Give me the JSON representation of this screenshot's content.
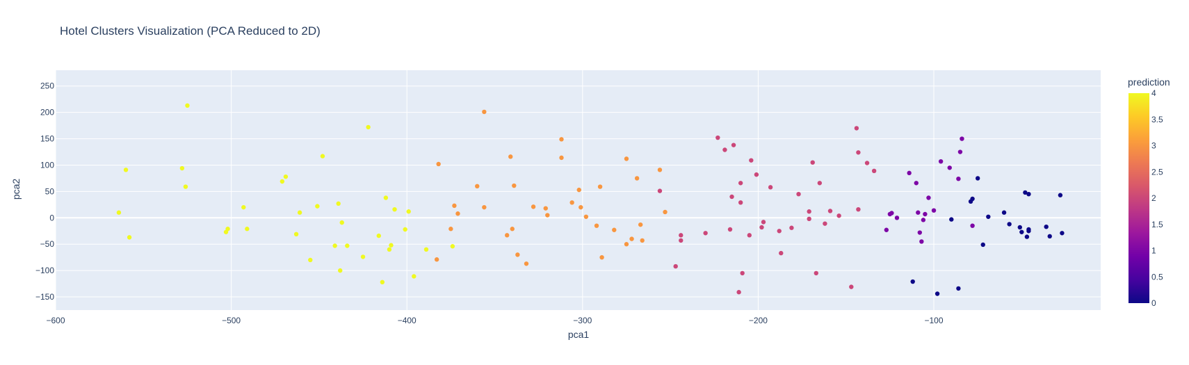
{
  "chart_data": {
    "type": "scatter",
    "title": "Hotel Clusters Visualization (PCA Reduced to 2D)",
    "xlabel": "pca1",
    "ylabel": "pca2",
    "xlim": [
      -600,
      -5
    ],
    "ylim": [
      -175,
      280
    ],
    "xticks": [
      -600,
      -500,
      -400,
      -300,
      -200,
      -100
    ],
    "xtick_labels": [
      "−600",
      "−500",
      "−400",
      "−300",
      "−200",
      "−100"
    ],
    "yticks": [
      -150,
      -100,
      -50,
      0,
      50,
      100,
      150,
      200,
      250
    ],
    "ytick_labels": [
      "−150",
      "−100",
      "−50",
      "0",
      "50",
      "100",
      "150",
      "200",
      "250"
    ],
    "grid": true,
    "colorbar": {
      "title": "prediction",
      "min": 0,
      "max": 4,
      "ticks": [
        0,
        0.5,
        1,
        1.5,
        2,
        2.5,
        3,
        3.5,
        4
      ],
      "tick_labels": [
        "0",
        "0.5",
        "1",
        "1.5",
        "2",
        "2.5",
        "3",
        "3.5",
        "4"
      ],
      "colorscale": [
        "#0d0887",
        "#46039f",
        "#7201a8",
        "#9c179e",
        "#bd3786",
        "#d8576b",
        "#ed7953",
        "#fb9f3a",
        "#fdca26",
        "#f0f921"
      ]
    },
    "colors": {
      "plot_bg": "#e5ecf6",
      "grid": "#ffffff",
      "text": "#2a3f5f"
    },
    "points": [
      {
        "x": -564,
        "y": 10,
        "c": 4
      },
      {
        "x": -560,
        "y": 91,
        "c": 4
      },
      {
        "x": -558,
        "y": -37,
        "c": 4
      },
      {
        "x": -528,
        "y": 94,
        "c": 4
      },
      {
        "x": -526,
        "y": 59,
        "c": 4
      },
      {
        "x": -525,
        "y": 213,
        "c": 4
      },
      {
        "x": -503,
        "y": -27,
        "c": 4
      },
      {
        "x": -502,
        "y": -21,
        "c": 4
      },
      {
        "x": -493,
        "y": 20,
        "c": 4
      },
      {
        "x": -491,
        "y": -21,
        "c": 4
      },
      {
        "x": -471,
        "y": 69,
        "c": 4
      },
      {
        "x": -469,
        "y": 78,
        "c": 4
      },
      {
        "x": -463,
        "y": -31,
        "c": 4
      },
      {
        "x": -461,
        "y": 10,
        "c": 4
      },
      {
        "x": -455,
        "y": -80,
        "c": 4
      },
      {
        "x": -451,
        "y": 22,
        "c": 4
      },
      {
        "x": -448,
        "y": 117,
        "c": 4
      },
      {
        "x": -441,
        "y": -53,
        "c": 4
      },
      {
        "x": -439,
        "y": 27,
        "c": 4
      },
      {
        "x": -438,
        "y": -100,
        "c": 4
      },
      {
        "x": -437,
        "y": -9,
        "c": 4
      },
      {
        "x": -434,
        "y": -53,
        "c": 4
      },
      {
        "x": -425,
        "y": -74,
        "c": 4
      },
      {
        "x": -422,
        "y": 172,
        "c": 4
      },
      {
        "x": -416,
        "y": -34,
        "c": 4
      },
      {
        "x": -414,
        "y": -122,
        "c": 4
      },
      {
        "x": -412,
        "y": 38,
        "c": 4
      },
      {
        "x": -410,
        "y": -60,
        "c": 4
      },
      {
        "x": -409,
        "y": -52,
        "c": 4
      },
      {
        "x": -407,
        "y": 16,
        "c": 4
      },
      {
        "x": -401,
        "y": -22,
        "c": 4
      },
      {
        "x": -399,
        "y": 12,
        "c": 4
      },
      {
        "x": -396,
        "y": -111,
        "c": 4
      },
      {
        "x": -389,
        "y": -60,
        "c": 4
      },
      {
        "x": -374,
        "y": -54,
        "c": 4
      },
      {
        "x": -383,
        "y": -79,
        "c": 3
      },
      {
        "x": -382,
        "y": 102,
        "c": 3
      },
      {
        "x": -375,
        "y": -21,
        "c": 3
      },
      {
        "x": -373,
        "y": 23,
        "c": 3
      },
      {
        "x": -371,
        "y": 8,
        "c": 3
      },
      {
        "x": -360,
        "y": 60,
        "c": 3
      },
      {
        "x": -356,
        "y": 201,
        "c": 3
      },
      {
        "x": -356,
        "y": 20,
        "c": 3
      },
      {
        "x": -343,
        "y": -33,
        "c": 3
      },
      {
        "x": -341,
        "y": 116,
        "c": 3
      },
      {
        "x": -340,
        "y": -21,
        "c": 3
      },
      {
        "x": -339,
        "y": 61,
        "c": 3
      },
      {
        "x": -337,
        "y": -70,
        "c": 3
      },
      {
        "x": -332,
        "y": -87,
        "c": 3
      },
      {
        "x": -328,
        "y": 21,
        "c": 3
      },
      {
        "x": -321,
        "y": 18,
        "c": 3
      },
      {
        "x": -320,
        "y": 5,
        "c": 3
      },
      {
        "x": -312,
        "y": 149,
        "c": 3
      },
      {
        "x": -312,
        "y": 114,
        "c": 3
      },
      {
        "x": -306,
        "y": 29,
        "c": 3
      },
      {
        "x": -302,
        "y": 53,
        "c": 3
      },
      {
        "x": -301,
        "y": 20,
        "c": 3
      },
      {
        "x": -298,
        "y": 2,
        "c": 3
      },
      {
        "x": -292,
        "y": -15,
        "c": 3
      },
      {
        "x": -290,
        "y": 59,
        "c": 3
      },
      {
        "x": -289,
        "y": -75,
        "c": 3
      },
      {
        "x": -282,
        "y": -23,
        "c": 3
      },
      {
        "x": -275,
        "y": 112,
        "c": 3
      },
      {
        "x": -275,
        "y": -50,
        "c": 3
      },
      {
        "x": -272,
        "y": -40,
        "c": 3
      },
      {
        "x": -269,
        "y": 75,
        "c": 3
      },
      {
        "x": -267,
        "y": -13,
        "c": 3
      },
      {
        "x": -266,
        "y": -43,
        "c": 3
      },
      {
        "x": -256,
        "y": 91,
        "c": 3
      },
      {
        "x": -253,
        "y": 11,
        "c": 3
      },
      {
        "x": -256,
        "y": 51,
        "c": 2
      },
      {
        "x": -247,
        "y": -92,
        "c": 2
      },
      {
        "x": -244,
        "y": -33,
        "c": 2
      },
      {
        "x": -244,
        "y": -43,
        "c": 2
      },
      {
        "x": -230,
        "y": -29,
        "c": 2
      },
      {
        "x": -223,
        "y": 152,
        "c": 2
      },
      {
        "x": -219,
        "y": 129,
        "c": 2
      },
      {
        "x": -216,
        "y": -22,
        "c": 2
      },
      {
        "x": -215,
        "y": 40,
        "c": 2
      },
      {
        "x": -214,
        "y": 138,
        "c": 2
      },
      {
        "x": -211,
        "y": -141,
        "c": 2
      },
      {
        "x": -210,
        "y": 66,
        "c": 2
      },
      {
        "x": -210,
        "y": 29,
        "c": 2
      },
      {
        "x": -209,
        "y": -105,
        "c": 2
      },
      {
        "x": -205,
        "y": -33,
        "c": 2
      },
      {
        "x": -204,
        "y": 109,
        "c": 2
      },
      {
        "x": -201,
        "y": 82,
        "c": 2
      },
      {
        "x": -198,
        "y": -18,
        "c": 2
      },
      {
        "x": -197,
        "y": -8,
        "c": 2
      },
      {
        "x": -193,
        "y": 58,
        "c": 2
      },
      {
        "x": -188,
        "y": -25,
        "c": 2
      },
      {
        "x": -187,
        "y": -67,
        "c": 2
      },
      {
        "x": -181,
        "y": -19,
        "c": 2
      },
      {
        "x": -177,
        "y": 45,
        "c": 2
      },
      {
        "x": -171,
        "y": 12,
        "c": 2
      },
      {
        "x": -171,
        "y": -2,
        "c": 2
      },
      {
        "x": -169,
        "y": 105,
        "c": 2
      },
      {
        "x": -167,
        "y": -105,
        "c": 2
      },
      {
        "x": -165,
        "y": 66,
        "c": 2
      },
      {
        "x": -162,
        "y": -11,
        "c": 2
      },
      {
        "x": -159,
        "y": 13,
        "c": 2
      },
      {
        "x": -154,
        "y": 4,
        "c": 2
      },
      {
        "x": -147,
        "y": -131,
        "c": 2
      },
      {
        "x": -144,
        "y": 170,
        "c": 2
      },
      {
        "x": -143,
        "y": 124,
        "c": 2
      },
      {
        "x": -143,
        "y": 16,
        "c": 2
      },
      {
        "x": -138,
        "y": 104,
        "c": 2
      },
      {
        "x": -134,
        "y": 89,
        "c": 2
      },
      {
        "x": -127,
        "y": -23,
        "c": 1
      },
      {
        "x": -125,
        "y": 7,
        "c": 1
      },
      {
        "x": -124,
        "y": 9,
        "c": 1
      },
      {
        "x": -121,
        "y": 0,
        "c": 1
      },
      {
        "x": -114,
        "y": 85,
        "c": 1
      },
      {
        "x": -110,
        "y": 66,
        "c": 1
      },
      {
        "x": -109,
        "y": 10,
        "c": 1
      },
      {
        "x": -108,
        "y": -28,
        "c": 1
      },
      {
        "x": -107,
        "y": -45,
        "c": 1
      },
      {
        "x": -106,
        "y": -4,
        "c": 1
      },
      {
        "x": -105,
        "y": 7,
        "c": 1
      },
      {
        "x": -103,
        "y": 38,
        "c": 1
      },
      {
        "x": -100,
        "y": 14,
        "c": 1
      },
      {
        "x": -96,
        "y": 107,
        "c": 1
      },
      {
        "x": -91,
        "y": 95,
        "c": 1
      },
      {
        "x": -86,
        "y": 74,
        "c": 1
      },
      {
        "x": -85,
        "y": 125,
        "c": 1
      },
      {
        "x": -84,
        "y": 150,
        "c": 1
      },
      {
        "x": -78,
        "y": -15,
        "c": 1
      },
      {
        "x": -112,
        "y": -121,
        "c": 0
      },
      {
        "x": -98,
        "y": -144,
        "c": 0
      },
      {
        "x": -90,
        "y": -3,
        "c": 0
      },
      {
        "x": -86,
        "y": -134,
        "c": 0
      },
      {
        "x": -79,
        "y": 31,
        "c": 0
      },
      {
        "x": -78,
        "y": 36,
        "c": 0
      },
      {
        "x": -75,
        "y": 75,
        "c": 0
      },
      {
        "x": -72,
        "y": -51,
        "c": 0
      },
      {
        "x": -69,
        "y": 2,
        "c": 0
      },
      {
        "x": -60,
        "y": 10,
        "c": 0
      },
      {
        "x": -57,
        "y": -12,
        "c": 0
      },
      {
        "x": -51,
        "y": -18,
        "c": 0
      },
      {
        "x": -50,
        "y": -27,
        "c": 0
      },
      {
        "x": -48,
        "y": 48,
        "c": 0
      },
      {
        "x": -47,
        "y": -36,
        "c": 0
      },
      {
        "x": -46,
        "y": 45,
        "c": 0
      },
      {
        "x": -46,
        "y": -22,
        "c": 0
      },
      {
        "x": -46,
        "y": -25,
        "c": 0
      },
      {
        "x": -36,
        "y": -17,
        "c": 0
      },
      {
        "x": -34,
        "y": -35,
        "c": 0
      },
      {
        "x": -28,
        "y": 43,
        "c": 0
      },
      {
        "x": -27,
        "y": -29,
        "c": 0
      }
    ]
  }
}
